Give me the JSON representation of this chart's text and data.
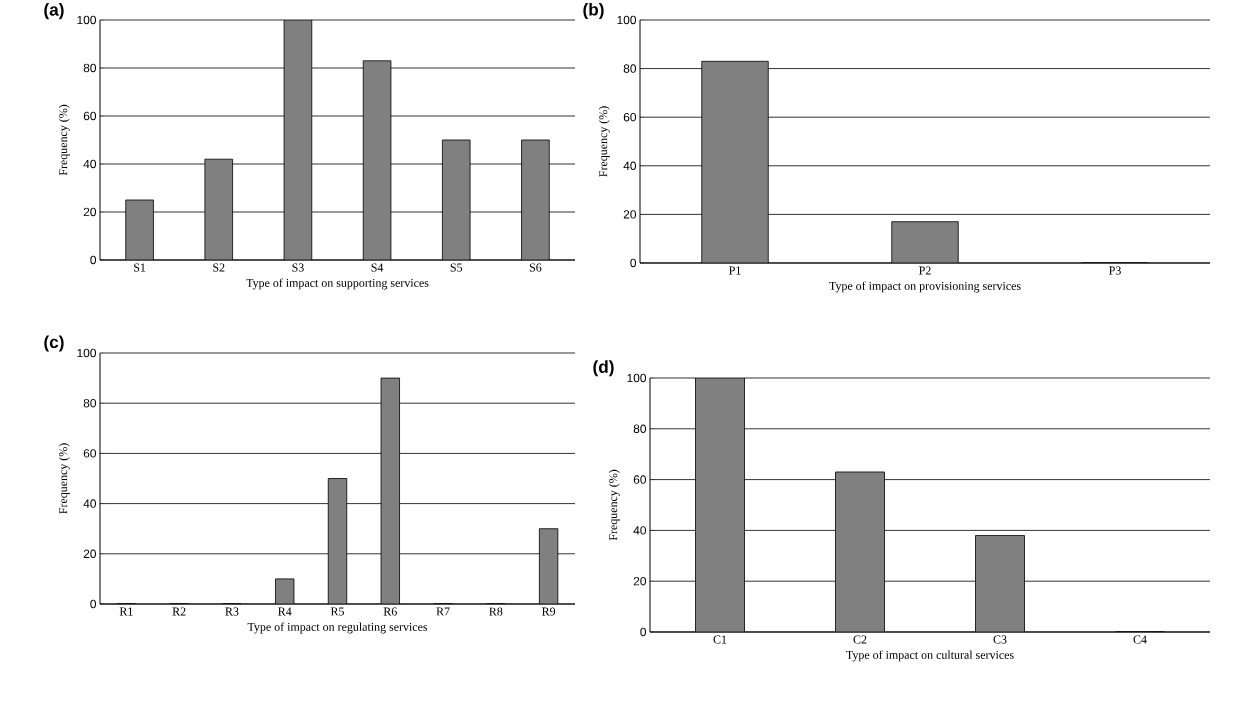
{
  "chart_data": [
    {
      "type": "bar",
      "title": "(a)",
      "xlabel": "Type of impact on supporting services",
      "ylabel": "Frequency (%)",
      "categories": [
        "S1",
        "S2",
        "S3",
        "S4",
        "S5",
        "S6"
      ],
      "values": [
        25,
        42,
        100,
        83,
        50,
        50
      ],
      "color": "#808080",
      "ylim": [
        0,
        100
      ],
      "yticks": [
        0,
        20,
        40,
        60,
        80,
        100
      ],
      "grid": "y"
    },
    {
      "type": "bar",
      "title": "(b)",
      "xlabel": "Type of impact on provisioning services",
      "ylabel": "Frequency (%)",
      "categories": [
        "P1",
        "P2",
        "P3"
      ],
      "values": [
        83,
        17,
        0
      ],
      "color": "#808080",
      "ylim": [
        0,
        100
      ],
      "yticks": [
        0,
        20,
        40,
        60,
        80,
        100
      ],
      "grid": "y"
    },
    {
      "type": "bar",
      "title": "(c)",
      "xlabel": "Type of impact on regulating services",
      "ylabel": "Frequency (%)",
      "categories": [
        "R1",
        "R2",
        "R3",
        "R4",
        "R5",
        "R6",
        "R7",
        "R8",
        "R9"
      ],
      "values": [
        0,
        0,
        0,
        10,
        50,
        90,
        0,
        0,
        30
      ],
      "color": "#808080",
      "ylim": [
        0,
        100
      ],
      "yticks": [
        0,
        20,
        40,
        60,
        80,
        100
      ],
      "grid": "y"
    },
    {
      "type": "bar",
      "title": "(d)",
      "xlabel": "Type of impact on cultural services",
      "ylabel": "Frequency (%)",
      "categories": [
        "C1",
        "C2",
        "C3",
        "C4"
      ],
      "values": [
        100,
        63,
        38,
        0
      ],
      "color": "#808080",
      "ylim": [
        0,
        100
      ],
      "yticks": [
        0,
        20,
        40,
        60,
        80,
        100
      ],
      "grid": "y"
    }
  ]
}
